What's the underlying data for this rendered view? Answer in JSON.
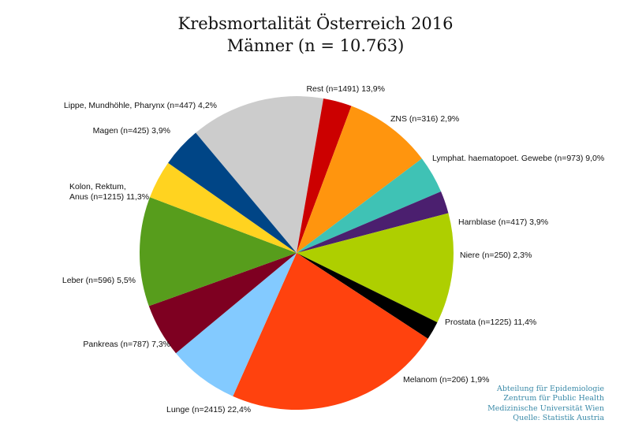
{
  "chart_data": {
    "type": "pie",
    "title": "Krebsmortalität Österreich 2016",
    "subtitle": "Männer (n = 10.763)",
    "slices": [
      {
        "label": "Rest (n=1491) 13,9%",
        "value": 1491,
        "color": "#cccccc"
      },
      {
        "label": "ZNS (n=316) 2,9%",
        "value": 316,
        "color": "#cc0000"
      },
      {
        "label": "Lymphat. haematopoet. Gewebe (n=973) 9,0%",
        "value": 973,
        "color": "#ff950e"
      },
      {
        "label": "Harnblase (n=417) 3,9%",
        "value": 417,
        "color": "#3fc2b5"
      },
      {
        "label": "Niere (n=250) 2,3%",
        "value": 250,
        "color": "#4b1f6f"
      },
      {
        "label": "Prostata (n=1225) 11,4%",
        "value": 1225,
        "color": "#aecf00"
      },
      {
        "label": "Melanom (n=206) 1,9%",
        "value": 206,
        "color": "#000000"
      },
      {
        "label": "Lunge (n=2415) 22,4%",
        "value": 2415,
        "color": "#ff420e"
      },
      {
        "label": "Pankreas (n=787) 7,3%",
        "value": 787,
        "color": "#83caff"
      },
      {
        "label": "Leber (n=596) 5,5%",
        "value": 596,
        "color": "#7e0021"
      },
      {
        "label": [
          "Kolon, Rektum,",
          "Anus (n=1215) 11,3%"
        ],
        "value": 1215,
        "color": "#579d1c"
      },
      {
        "label": "Magen (n=425) 3,9%",
        "value": 425,
        "color": "#ffd320"
      },
      {
        "label": "Lippe, Mundhöhle, Pharynx (n=447) 4,2%",
        "value": 447,
        "color": "#004586"
      }
    ]
  },
  "credits": {
    "line1": "Abteilung für Epidemiologie",
    "line2": "Zentrum für Public Health",
    "line3": "Medizinische Universität Wien",
    "line4": "Quelle: Statistik Austria"
  }
}
